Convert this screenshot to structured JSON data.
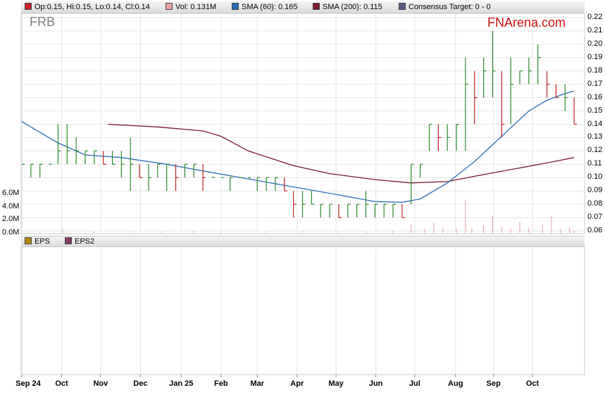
{
  "ticker": "FRB",
  "brand": "FNArena.com",
  "legend": [
    {
      "label": "Op:0.15, Hi:0.15, Lo:0.14, Cl:0.14",
      "color": "#cc2222"
    },
    {
      "label": "Vol: 0.131M",
      "color": "#f0a0a0"
    },
    {
      "label": "SMA (60): 0.165",
      "color": "#2a6fb5"
    },
    {
      "label": "SMA (200): 0.115",
      "color": "#7a1a2a"
    },
    {
      "label": "Consensus Target: 0 - 0",
      "color": "#5a5a8a"
    }
  ],
  "eps_legend": [
    {
      "label": "EPS",
      "color": "#b8860b"
    },
    {
      "label": "EPS2",
      "color": "#8b3a62"
    }
  ],
  "chart_data": {
    "type": "line",
    "price_axis": {
      "ylim": [
        0.06,
        0.22
      ],
      "ticks": [
        "0.22",
        "0.21",
        "0.20",
        "0.19",
        "0.18",
        "0.17",
        "0.16",
        "0.15",
        "0.14",
        "0.13",
        "0.12",
        "0.11",
        "0.10",
        "0.09",
        "0.08",
        "0.07",
        "0.06"
      ]
    },
    "volume_axis": {
      "ylim": [
        0,
        8
      ],
      "unit": "M",
      "ticks": [
        "6.0M",
        "4.0M",
        "2.0M",
        "0.0M"
      ]
    },
    "x_axis": {
      "labels": [
        "Sep 24",
        "Oct",
        "Nov",
        "Dec",
        "Jan 25",
        "Feb",
        "Mar",
        "Apr",
        "May",
        "Jun",
        "Jul",
        "Aug",
        "Sep",
        "Oct"
      ],
      "bold_labels": [
        "Sep 24",
        "Jan 25"
      ],
      "label_week": [
        0,
        4.4,
        8.7,
        13.1,
        17.6,
        22.0,
        26.0,
        30.4,
        34.7,
        39.1,
        43.4,
        47.9,
        52.1,
        56.4
      ],
      "grid": true
    },
    "price_series": [
      {
        "w": 0,
        "h": 0.11,
        "l": 0.11,
        "c": 0.11
      },
      {
        "w": 1,
        "h": 0.11,
        "l": 0.1,
        "c": 0.11
      },
      {
        "w": 2,
        "h": 0.11,
        "l": 0.1,
        "c": 0.11
      },
      {
        "w": 3,
        "h": 0.11,
        "l": 0.11,
        "c": 0.11
      },
      {
        "w": 4,
        "h": 0.14,
        "l": 0.11,
        "c": 0.12
      },
      {
        "w": 5,
        "h": 0.14,
        "l": 0.11,
        "c": 0.12
      },
      {
        "w": 6,
        "h": 0.13,
        "l": 0.11,
        "c": 0.12
      },
      {
        "w": 7,
        "h": 0.12,
        "l": 0.11,
        "c": 0.12
      },
      {
        "w": 8,
        "h": 0.12,
        "l": 0.11,
        "c": 0.12
      },
      {
        "w": 9,
        "h": 0.12,
        "l": 0.11,
        "c": 0.11
      },
      {
        "w": 10,
        "h": 0.12,
        "l": 0.11,
        "c": 0.11
      },
      {
        "w": 11,
        "h": 0.12,
        "l": 0.1,
        "c": 0.11
      },
      {
        "w": 12,
        "h": 0.13,
        "l": 0.09,
        "c": 0.11
      },
      {
        "w": 13,
        "h": 0.11,
        "l": 0.1,
        "c": 0.1
      },
      {
        "w": 14,
        "h": 0.11,
        "l": 0.09,
        "c": 0.1
      },
      {
        "w": 15,
        "h": 0.11,
        "l": 0.1,
        "c": 0.11
      },
      {
        "w": 16,
        "h": 0.11,
        "l": 0.09,
        "c": 0.11
      },
      {
        "w": 17,
        "h": 0.11,
        "l": 0.09,
        "c": 0.1
      },
      {
        "w": 18,
        "h": 0.11,
        "l": 0.1,
        "c": 0.11
      },
      {
        "w": 19,
        "h": 0.11,
        "l": 0.1,
        "c": 0.11
      },
      {
        "w": 20,
        "h": 0.11,
        "l": 0.09,
        "c": 0.1
      },
      {
        "w": 21,
        "h": 0.1,
        "l": 0.1,
        "c": 0.1
      },
      {
        "w": 22,
        "h": 0.1,
        "l": 0.1,
        "c": 0.1
      },
      {
        "w": 23,
        "h": 0.1,
        "l": 0.09,
        "c": 0.1
      },
      {
        "w": 24,
        "h": 0.1,
        "l": 0.1,
        "c": 0.1
      },
      {
        "w": 25,
        "h": 0.1,
        "l": 0.1,
        "c": 0.1
      },
      {
        "w": 26,
        "h": 0.1,
        "l": 0.09,
        "c": 0.1
      },
      {
        "w": 27,
        "h": 0.1,
        "l": 0.09,
        "c": 0.1
      },
      {
        "w": 28,
        "h": 0.1,
        "l": 0.09,
        "c": 0.1
      },
      {
        "w": 29,
        "h": 0.1,
        "l": 0.09,
        "c": 0.09
      },
      {
        "w": 30,
        "h": 0.09,
        "l": 0.07,
        "c": 0.08
      },
      {
        "w": 31,
        "h": 0.09,
        "l": 0.07,
        "c": 0.08
      },
      {
        "w": 32,
        "h": 0.09,
        "l": 0.08,
        "c": 0.08
      },
      {
        "w": 33,
        "h": 0.08,
        "l": 0.07,
        "c": 0.08
      },
      {
        "w": 34,
        "h": 0.08,
        "l": 0.07,
        "c": 0.08
      },
      {
        "w": 35,
        "h": 0.08,
        "l": 0.07,
        "c": 0.07
      },
      {
        "w": 36,
        "h": 0.08,
        "l": 0.07,
        "c": 0.08
      },
      {
        "w": 37,
        "h": 0.08,
        "l": 0.07,
        "c": 0.08
      },
      {
        "w": 38,
        "h": 0.09,
        "l": 0.07,
        "c": 0.08
      },
      {
        "w": 39,
        "h": 0.08,
        "l": 0.07,
        "c": 0.08
      },
      {
        "w": 40,
        "h": 0.08,
        "l": 0.07,
        "c": 0.08
      },
      {
        "w": 41,
        "h": 0.08,
        "l": 0.07,
        "c": 0.08
      },
      {
        "w": 42,
        "h": 0.08,
        "l": 0.07,
        "c": 0.07
      },
      {
        "w": 43,
        "h": 0.11,
        "l": 0.08,
        "c": 0.11
      },
      {
        "w": 44,
        "h": 0.11,
        "l": 0.1,
        "c": 0.11
      },
      {
        "w": 45,
        "h": 0.14,
        "l": 0.12,
        "c": 0.14
      },
      {
        "w": 46,
        "h": 0.14,
        "l": 0.12,
        "c": 0.13
      },
      {
        "w": 47,
        "h": 0.14,
        "l": 0.12,
        "c": 0.13
      },
      {
        "w": 48,
        "h": 0.14,
        "l": 0.12,
        "c": 0.14
      },
      {
        "w": 49,
        "h": 0.19,
        "l": 0.12,
        "c": 0.17
      },
      {
        "w": 50,
        "h": 0.18,
        "l": 0.14,
        "c": 0.16
      },
      {
        "w": 51,
        "h": 0.19,
        "l": 0.16,
        "c": 0.18
      },
      {
        "w": 52,
        "h": 0.21,
        "l": 0.16,
        "c": 0.18
      },
      {
        "w": 53,
        "h": 0.18,
        "l": 0.13,
        "c": 0.14
      },
      {
        "w": 54,
        "h": 0.19,
        "l": 0.14,
        "c": 0.17
      },
      {
        "w": 55,
        "h": 0.18,
        "l": 0.17,
        "c": 0.18
      },
      {
        "w": 56,
        "h": 0.19,
        "l": 0.17,
        "c": 0.18
      },
      {
        "w": 57,
        "h": 0.2,
        "l": 0.17,
        "c": 0.19
      },
      {
        "w": 58,
        "h": 0.18,
        "l": 0.16,
        "c": 0.17
      },
      {
        "w": 59,
        "h": 0.17,
        "l": 0.16,
        "c": 0.16
      },
      {
        "w": 60,
        "h": 0.17,
        "l": 0.15,
        "c": 0.16
      },
      {
        "w": 61,
        "h": 0.16,
        "l": 0.14,
        "c": 0.14
      }
    ],
    "sma60": [
      {
        "w": 0,
        "v": 0.142
      },
      {
        "w": 2,
        "v": 0.134
      },
      {
        "w": 4,
        "v": 0.126
      },
      {
        "w": 7,
        "v": 0.117
      },
      {
        "w": 11,
        "v": 0.115
      },
      {
        "w": 16,
        "v": 0.11
      },
      {
        "w": 20,
        "v": 0.105
      },
      {
        "w": 25,
        "v": 0.099
      },
      {
        "w": 30,
        "v": 0.093
      },
      {
        "w": 35,
        "v": 0.087
      },
      {
        "w": 39,
        "v": 0.082
      },
      {
        "w": 42,
        "v": 0.0815
      },
      {
        "w": 44,
        "v": 0.084
      },
      {
        "w": 47,
        "v": 0.096
      },
      {
        "w": 50,
        "v": 0.112
      },
      {
        "w": 53,
        "v": 0.131
      },
      {
        "w": 56,
        "v": 0.15
      },
      {
        "w": 58,
        "v": 0.158
      },
      {
        "w": 60,
        "v": 0.163
      },
      {
        "w": 61,
        "v": 0.165
      }
    ],
    "sma200": [
      {
        "w": 9.5,
        "v": 0.14
      },
      {
        "w": 15,
        "v": 0.138
      },
      {
        "w": 20,
        "v": 0.135
      },
      {
        "w": 22,
        "v": 0.131
      },
      {
        "w": 25,
        "v": 0.12
      },
      {
        "w": 30,
        "v": 0.109
      },
      {
        "w": 34,
        "v": 0.103
      },
      {
        "w": 39,
        "v": 0.0985
      },
      {
        "w": 43,
        "v": 0.096
      },
      {
        "w": 47,
        "v": 0.097
      },
      {
        "w": 50,
        "v": 0.101
      },
      {
        "w": 54,
        "v": 0.106
      },
      {
        "w": 58,
        "v": 0.111
      },
      {
        "w": 61,
        "v": 0.115
      }
    ],
    "volume": [
      {
        "w": 2,
        "v": 0.2
      },
      {
        "w": 4.5,
        "v": 0.6
      },
      {
        "w": 8,
        "v": 0.2
      },
      {
        "w": 12,
        "v": 0.3
      },
      {
        "w": 15.5,
        "v": 0.3
      },
      {
        "w": 19,
        "v": 0.4
      },
      {
        "w": 22,
        "v": 0.2
      },
      {
        "w": 27,
        "v": 0.2
      },
      {
        "w": 31,
        "v": 0.3
      },
      {
        "w": 35,
        "v": 0.2
      },
      {
        "w": 38,
        "v": 0.3
      },
      {
        "w": 41,
        "v": 0.4
      },
      {
        "w": 43,
        "v": 1.3
      },
      {
        "w": 44.5,
        "v": 0.6
      },
      {
        "w": 45.5,
        "v": 1.6
      },
      {
        "w": 46.5,
        "v": 0.8
      },
      {
        "w": 48,
        "v": 0.7
      },
      {
        "w": 49,
        "v": 5.1
      },
      {
        "w": 49.7,
        "v": 0.8
      },
      {
        "w": 51,
        "v": 1.2
      },
      {
        "w": 52,
        "v": 2.6
      },
      {
        "w": 53,
        "v": 1.0
      },
      {
        "w": 54,
        "v": 0.7
      },
      {
        "w": 55,
        "v": 1.7
      },
      {
        "w": 56,
        "v": 0.8
      },
      {
        "w": 57.5,
        "v": 1.3
      },
      {
        "w": 58.5,
        "v": 2.6
      },
      {
        "w": 59.5,
        "v": 0.6
      },
      {
        "w": 60.5,
        "v": 0.9
      },
      {
        "w": 61,
        "v": 0.4
      }
    ]
  }
}
